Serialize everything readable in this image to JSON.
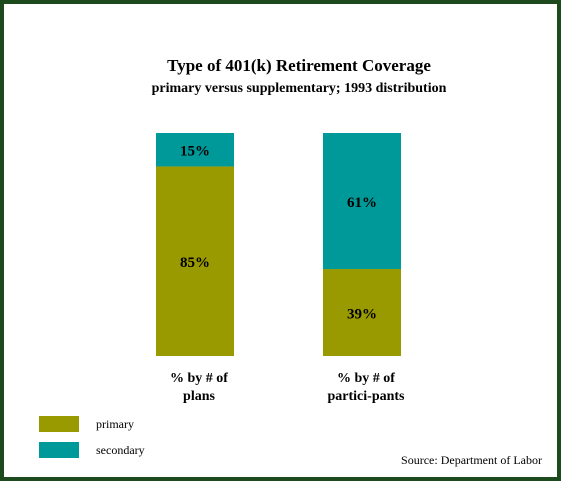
{
  "chart_data": {
    "type": "bar",
    "stacked": true,
    "title": "Type of 401(k) Retirement Coverage",
    "subtitle": "primary versus supplementary;  1993 distribution",
    "categories": [
      [
        "% by # of",
        "plans"
      ],
      [
        "% by # of",
        "partici-pants"
      ]
    ],
    "series": [
      {
        "name": "primary",
        "values": [
          85,
          39
        ],
        "labels": [
          "85%",
          "39%"
        ],
        "color": "#999900"
      },
      {
        "name": "secondary",
        "values": [
          15,
          61
        ],
        "labels": [
          "15%",
          "61%"
        ],
        "color": "#009999"
      }
    ],
    "ylim": [
      0,
      100
    ],
    "grid": false,
    "legend_position": "bottom-left",
    "source": "Source:  Department of Labor"
  },
  "colors": {
    "frame": "#1c4a1c",
    "background": "#ffffff"
  }
}
